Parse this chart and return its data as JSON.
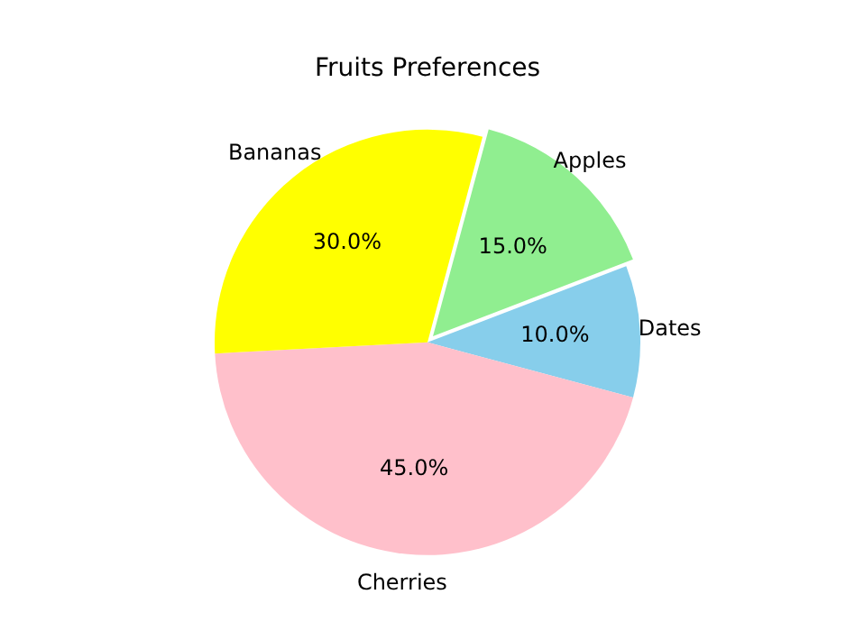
{
  "chart_data": {
    "type": "pie",
    "title": "Fruits Preferences",
    "categories": [
      "Apples",
      "Dates",
      "Cherries",
      "Bananas"
    ],
    "values": [
      15,
      10,
      45,
      30
    ],
    "colors": [
      "#90ee90",
      "#87ceeb",
      "#ffc0cb",
      "#ffff00"
    ],
    "value_labels": [
      "15.0%",
      "10.0%",
      "45.0%",
      "30.0%"
    ],
    "legend": false
  }
}
